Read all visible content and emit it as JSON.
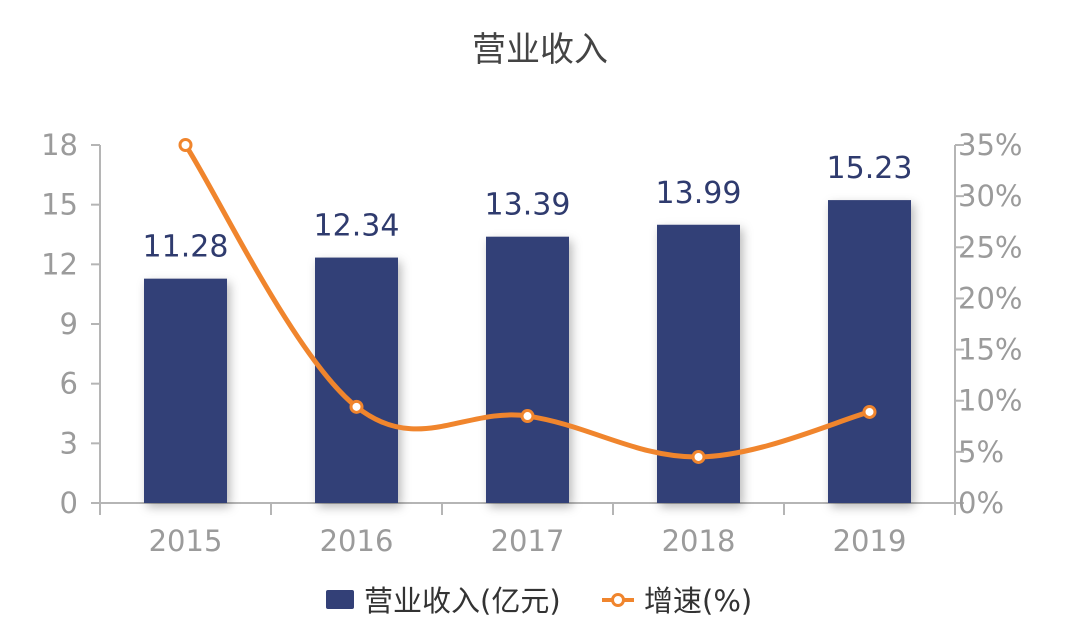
{
  "chart_data": {
    "type": "bar",
    "title": "营业收入",
    "categories": [
      "2015",
      "2016",
      "2017",
      "2018",
      "2019"
    ],
    "series": [
      {
        "name": "营业收入(亿元)",
        "type": "bar",
        "axis": "left",
        "values": [
          11.28,
          12.34,
          13.39,
          13.99,
          15.23
        ]
      },
      {
        "name": "增速(%)",
        "type": "line",
        "axis": "right",
        "values": [
          35.0,
          9.4,
          8.5,
          4.5,
          8.9
        ]
      }
    ],
    "y_left": {
      "ylim": [
        0,
        18
      ],
      "ticks": [
        "0",
        "3",
        "6",
        "9",
        "12",
        "15",
        "18"
      ]
    },
    "y_right": {
      "ylim": [
        0,
        35
      ],
      "ticks": [
        "0%",
        "5%",
        "10%",
        "15%",
        "20%",
        "25%",
        "30%",
        "35%"
      ]
    },
    "data_labels": [
      "11.28",
      "12.34",
      "13.39",
      "13.99",
      "15.23"
    ],
    "legend": {
      "position": "bottom",
      "items": [
        "营业收入(亿元)",
        "增速(%)"
      ]
    },
    "colors": {
      "bar": "#334077",
      "line": "#f0852d",
      "axis": "#b5b5b5"
    },
    "grid": false
  }
}
